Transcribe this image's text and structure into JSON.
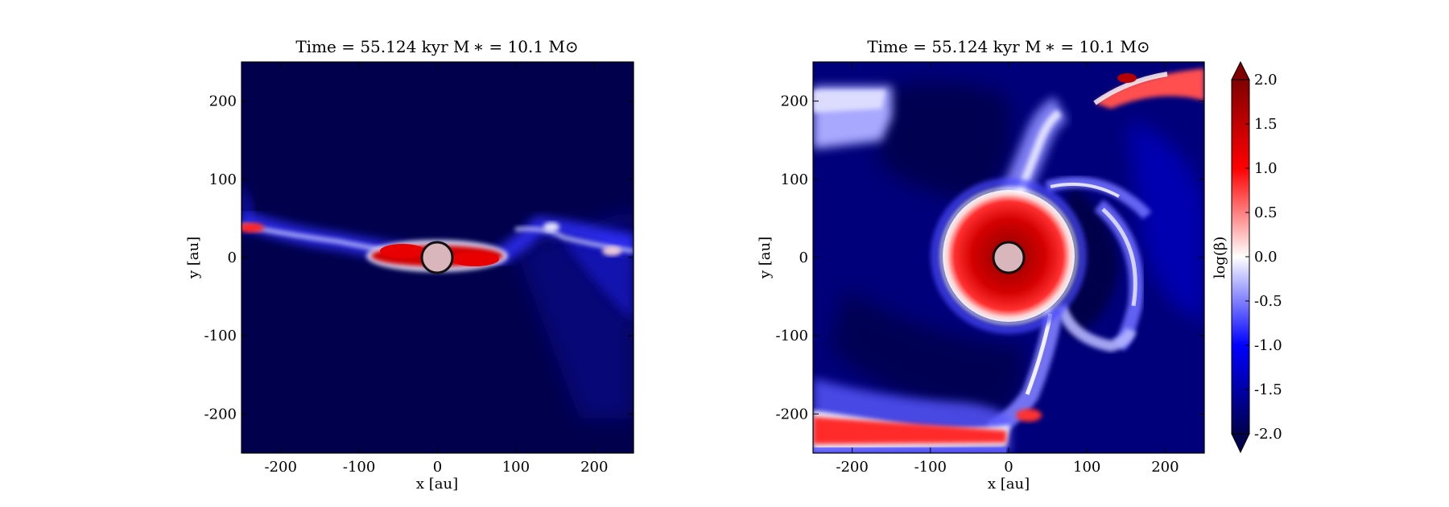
{
  "figure": {
    "panels": [
      {
        "title": "Time = 55.124 kyr    M ∗ = 10.1 M⊙",
        "xlabel": "x [au]",
        "ylabel": "y [au]"
      },
      {
        "title": "Time = 55.124 kyr    M ∗ = 10.1 M⊙",
        "xlabel": "x [au]",
        "ylabel": "y [au]"
      }
    ],
    "colorbar": {
      "label": "log(β)"
    }
  },
  "chart_data": [
    {
      "type": "heatmap",
      "title": "Time = 55.124 kyr    M ∗ = 10.1 M⊙",
      "xlabel": "x [au]",
      "ylabel": "y [au]",
      "xlim": [
        -250,
        250
      ],
      "ylim": [
        -250,
        250
      ],
      "xticks": [
        -200,
        -100,
        0,
        100,
        200
      ],
      "yticks": [
        -200,
        -100,
        0,
        100,
        200
      ],
      "xtick_labels": [
        "-200",
        "-100",
        "0",
        "100",
        "200"
      ],
      "ytick_labels": [
        "-200",
        "-100",
        "0",
        "100",
        "200"
      ],
      "colormap": "seismic",
      "vlim": [
        -2.0,
        2.0
      ],
      "background_value": -2.0,
      "features": [
        {
          "kind": "disk band",
          "value": 1.6,
          "x_range": [
            -75,
            75
          ],
          "y_center": -2
        },
        {
          "kind": "filament",
          "value": -0.8,
          "x_range": [
            -250,
            250
          ],
          "y_center": 10
        },
        {
          "kind": "outflow lobe",
          "value": -1.3,
          "x_range": [
            80,
            250
          ],
          "y_range": [
            -220,
            60
          ]
        },
        {
          "kind": "knot",
          "value": 0.6,
          "x": -235,
          "y": 38
        },
        {
          "kind": "knot",
          "value": 0.2,
          "x": 210,
          "y": 10
        }
      ],
      "sink": {
        "x": 0,
        "y": 0,
        "radius": 20,
        "color": "#d9b6bb"
      }
    },
    {
      "type": "heatmap",
      "title": "Time = 55.124 kyr    M ∗ = 10.1 M⊙",
      "xlabel": "x [au]",
      "ylabel": "y [au]",
      "xlim": [
        -250,
        250
      ],
      "ylim": [
        -250,
        250
      ],
      "xticks": [
        -200,
        -100,
        0,
        100,
        200
      ],
      "yticks": [
        -200,
        -100,
        0,
        100,
        200
      ],
      "xtick_labels": [
        "-200",
        "-100",
        "0",
        "100",
        "200"
      ],
      "ytick_labels": [
        "-200",
        "-100",
        "0",
        "100",
        "200"
      ],
      "colormap": "seismic",
      "vlim": [
        -2.0,
        2.0
      ],
      "background_value": -1.4,
      "features": [
        {
          "kind": "central bubble",
          "value": 1.6,
          "x": 0,
          "y": 0,
          "radius": 80
        },
        {
          "kind": "spiral arm",
          "value": -0.4
        },
        {
          "kind": "arc",
          "value": -0.5,
          "x_range": [
            120,
            200
          ],
          "y_range": [
            -100,
            60
          ]
        },
        {
          "kind": "lower band",
          "value": 1.2,
          "x_range": [
            -250,
            -40
          ],
          "y_range": [
            -240,
            -200
          ]
        },
        {
          "kind": "upper-right arc",
          "value": 1.5,
          "x_range": [
            100,
            250
          ],
          "y_range": [
            180,
            250
          ]
        },
        {
          "kind": "upper-left block",
          "value": -0.7,
          "x_range": [
            -250,
            -170
          ],
          "y_range": [
            140,
            215
          ]
        }
      ],
      "sink": {
        "x": 0,
        "y": 0,
        "radius": 20,
        "color": "#d9b6bb"
      }
    }
  ],
  "colorbar_data": {
    "label": "log(β)",
    "range": [
      -2.0,
      2.0
    ],
    "ticks": [
      2.0,
      1.5,
      1.0,
      0.5,
      0.0,
      -0.5,
      -1.0,
      -1.5,
      -2.0
    ],
    "tick_labels": [
      "2.0",
      "1.5",
      "1.0",
      "0.5",
      "0.0",
      "-0.5",
      "-1.0",
      "-1.5",
      "-2.0"
    ],
    "extend": "both",
    "levels": 32,
    "colormap_stops": [
      {
        "v": -2.0,
        "color": "#00004d"
      },
      {
        "v": -1.0,
        "color": "#0000ff"
      },
      {
        "v": 0.0,
        "color": "#ffffff"
      },
      {
        "v": 1.0,
        "color": "#ff0000"
      },
      {
        "v": 2.0,
        "color": "#800000"
      }
    ]
  }
}
